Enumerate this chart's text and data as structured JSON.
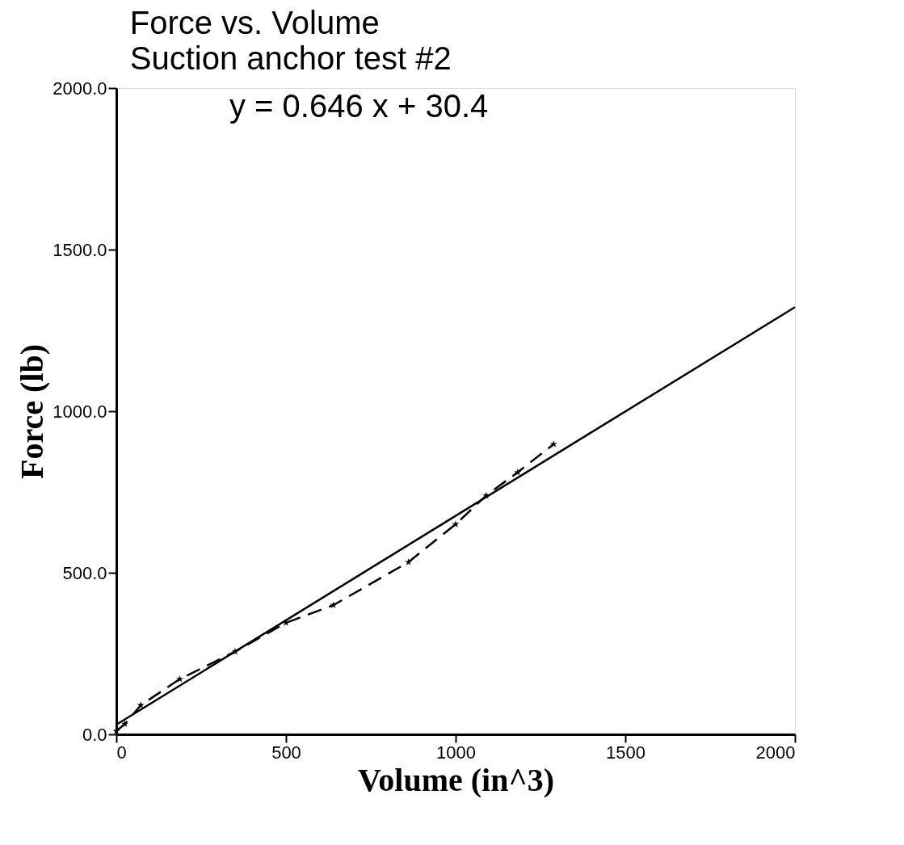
{
  "chart_data": {
    "type": "line",
    "title": "Force vs. Volume",
    "subtitle": "Suction anchor test #2",
    "annotations": [
      "y = 0.646 x + 30.4"
    ],
    "xlabel": "Volume (in^3)",
    "ylabel": "Force (lb)",
    "series": [
      {
        "type": "line",
        "color": "#000000",
        "line_style": "dashed",
        "marker": "star",
        "x": [
          0,
          25,
          72,
          187,
          350,
          500,
          640,
          861,
          1000,
          1090,
          1183,
          1289
        ],
        "values": [
          10,
          32,
          90,
          171,
          256,
          345,
          400,
          533,
          650,
          739,
          811,
          898
        ]
      },
      {
        "type": "line",
        "color": "#000000",
        "line_style": "solid",
        "marker": "none",
        "x": [
          0,
          2000
        ],
        "values": [
          30,
          1322
        ]
      }
    ],
    "xlim": [
      0,
      2000
    ],
    "ylim": [
      0,
      2000
    ],
    "xticks": [
      0,
      500,
      1000,
      1500,
      2000
    ],
    "yticks": [
      {
        "value": 0,
        "label": "0.0"
      },
      {
        "value": 500,
        "label": "500.0"
      },
      {
        "value": 1000,
        "label": "1000.0"
      },
      {
        "value": 1500,
        "label": "1500.0"
      },
      {
        "value": 2000,
        "label": "2000.0"
      }
    ],
    "grid": false
  }
}
